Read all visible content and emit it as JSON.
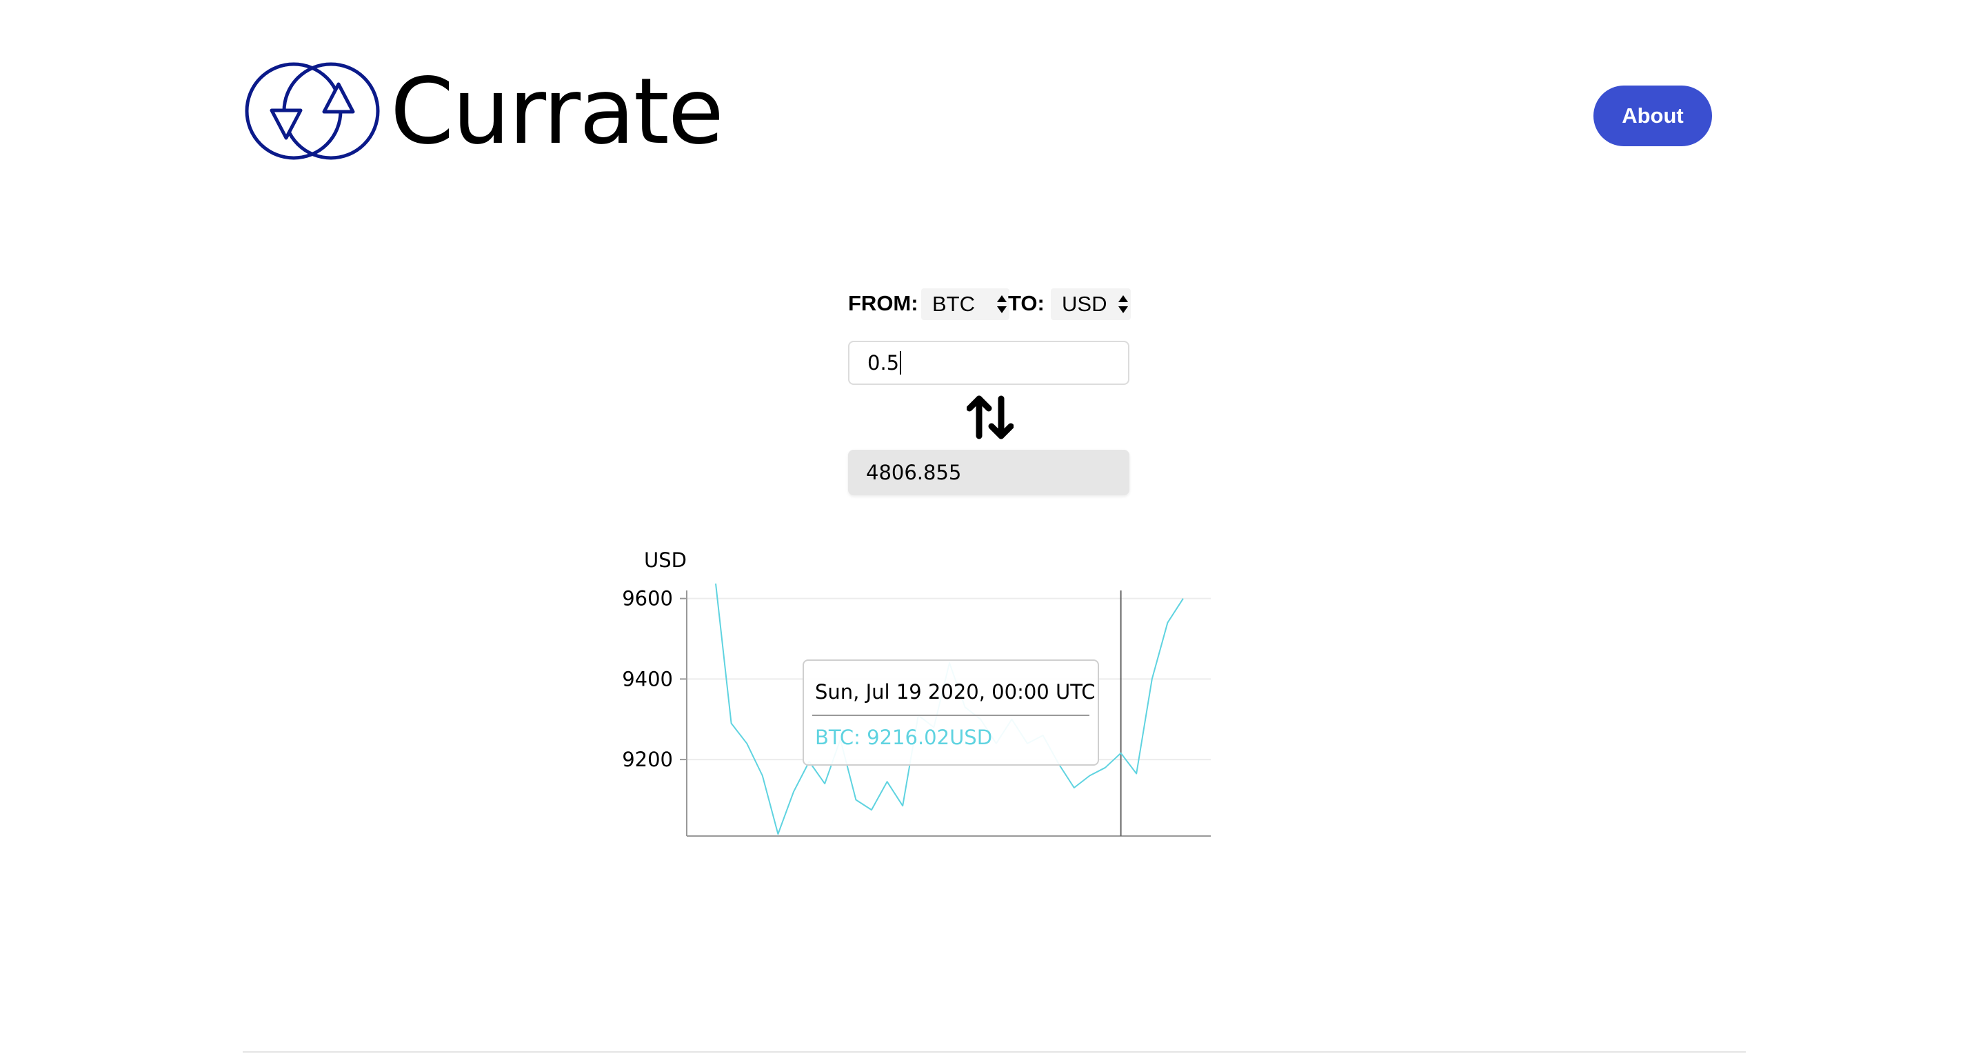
{
  "header": {
    "app_name": "Currate",
    "about_label": "About",
    "logo_icon": "exchange-circles-icon",
    "brand_color": "#0b1a8a",
    "button_color": "#3a4fd0"
  },
  "converter": {
    "from_label": "FROM:",
    "from_value": "BTC",
    "to_label": "TO:",
    "to_value": "USD",
    "amount_value": "0.5",
    "result_value": "4806.855",
    "swap_icon": "swap-vertical-arrows-icon"
  },
  "tooltip": {
    "date": "Sun, Jul 19 2020, 00:00 UTC",
    "value": "BTC: 9216.02USD"
  },
  "chart_data": {
    "type": "line",
    "ylabel": "USD",
    "yticks": [
      9600,
      9400,
      9200
    ],
    "ylim": [
      9010,
      9620
    ],
    "series_color": "#5fd3e0",
    "series": [
      {
        "name": "BTC",
        "values": [
          9650,
          9290,
          9240,
          9160,
          9015,
          9120,
          9195,
          9140,
          9250,
          9100,
          9075,
          9145,
          9085,
          9310,
          9280,
          9440,
          9330,
          9300,
          9240,
          9300,
          9240,
          9260,
          9190,
          9130,
          9160,
          9180,
          9216.02,
          9165,
          9400,
          9540,
          9600
        ]
      }
    ],
    "hover_index": 26
  }
}
